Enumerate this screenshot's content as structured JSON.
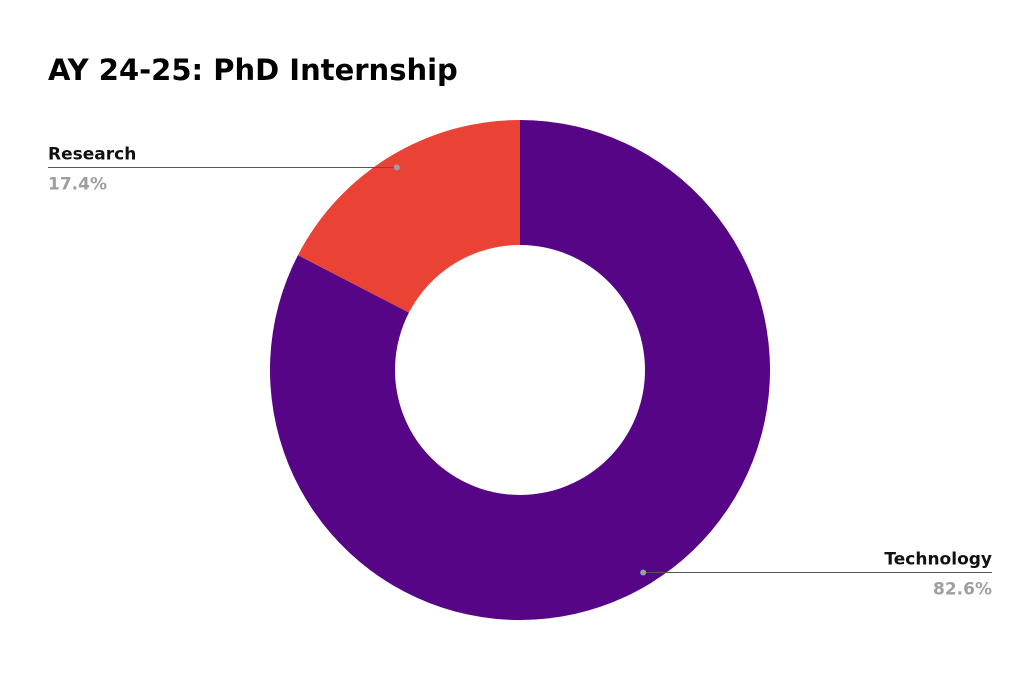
{
  "chart_data": {
    "type": "donut",
    "title": "AY 24-25: PhD Internship",
    "categories": [
      "Technology",
      "Research"
    ],
    "values": [
      82.6,
      17.4
    ],
    "value_labels": [
      "82.6%",
      "17.4%"
    ],
    "colors": [
      "#560586",
      "#ea4335"
    ]
  }
}
